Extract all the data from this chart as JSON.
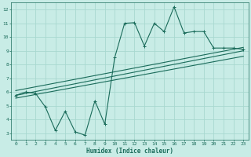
{
  "bg_color": "#c8ece6",
  "grid_color": "#a8d8d0",
  "line_color": "#1a6b5a",
  "xlabel": "Humidex (Indice chaleur)",
  "xlim": [
    -0.5,
    23.5
  ],
  "ylim": [
    2.5,
    12.5
  ],
  "xticks": [
    0,
    1,
    2,
    3,
    4,
    5,
    6,
    7,
    8,
    9,
    10,
    11,
    12,
    13,
    14,
    15,
    16,
    17,
    18,
    19,
    20,
    21,
    22,
    23
  ],
  "yticks": [
    3,
    4,
    5,
    6,
    7,
    8,
    9,
    10,
    11,
    12
  ],
  "line1_x": [
    0,
    1,
    2,
    3,
    4,
    5,
    6,
    7,
    8,
    9,
    10,
    11,
    12,
    13,
    14,
    15,
    16,
    17,
    18,
    19,
    20,
    21,
    22,
    23
  ],
  "line1_y": [
    5.75,
    6.0,
    5.9,
    4.9,
    3.2,
    4.6,
    3.1,
    2.85,
    5.35,
    3.65,
    8.5,
    11.0,
    11.05,
    9.35,
    11.0,
    10.4,
    12.2,
    10.3,
    10.4,
    10.4,
    9.2,
    9.2,
    9.2,
    9.1
  ],
  "line2_x": [
    0,
    23
  ],
  "line2_y": [
    6.1,
    9.25
  ],
  "line3_x": [
    0,
    23
  ],
  "line3_y": [
    5.75,
    9.0
  ],
  "line4_x": [
    0,
    23
  ],
  "line4_y": [
    5.55,
    8.6
  ]
}
